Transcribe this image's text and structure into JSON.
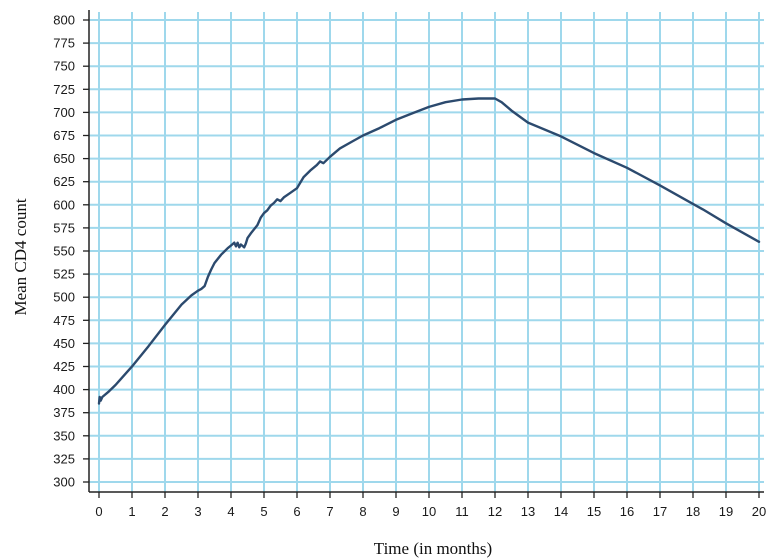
{
  "chart_data": {
    "type": "line",
    "title": "",
    "xlabel": "Time (in months)",
    "ylabel": "Mean CD4 count",
    "xlim": [
      0,
      20
    ],
    "ylim": [
      300,
      800
    ],
    "x_ticks": [
      0,
      1,
      2,
      3,
      4,
      5,
      6,
      7,
      8,
      9,
      10,
      11,
      12,
      13,
      14,
      15,
      16,
      17,
      18,
      19,
      20
    ],
    "y_ticks": [
      300,
      325,
      350,
      375,
      400,
      425,
      450,
      475,
      500,
      525,
      550,
      575,
      600,
      625,
      650,
      675,
      700,
      725,
      750,
      775,
      800
    ],
    "grid": true,
    "legend": "none",
    "colors": {
      "line": "#2c4a6e",
      "grid": "#9fd8ec",
      "axis": "#222222"
    },
    "series": [
      {
        "x": [
          0,
          0.02,
          0.05,
          0.1,
          0.3,
          0.5,
          1,
          1.5,
          2,
          2.5,
          2.8,
          3.0,
          3.1,
          3.2,
          3.3,
          3.4,
          3.5,
          3.7,
          3.9,
          4.0,
          4.1,
          4.15,
          4.2,
          4.25,
          4.3,
          4.4,
          4.45,
          4.5,
          4.6,
          4.8,
          4.9,
          5.0,
          5.1,
          5.2,
          5.3,
          5.4,
          5.5,
          5.6,
          5.8,
          6.0,
          6.1,
          6.2,
          6.4,
          6.6,
          6.7,
          6.8,
          7.0,
          7.3,
          7.7,
          8.0,
          8.5,
          9.0,
          9.5,
          10.0,
          10.5,
          11.0,
          11.5,
          11.8,
          12.0,
          12.2,
          12.5,
          13.0,
          14.0,
          15.0,
          16.0,
          17.0,
          18.0,
          18.3,
          19.0,
          20.0
        ],
        "values": [
          385,
          392,
          388,
          392,
          398,
          405,
          425,
          447,
          470,
          492,
          502,
          507,
          509,
          512,
          522,
          530,
          537,
          546,
          553,
          556,
          559,
          555,
          559,
          554,
          557,
          554,
          558,
          564,
          569,
          578,
          586,
          591,
          594,
          599,
          602,
          606,
          604,
          608,
          613,
          618,
          624,
          630,
          637,
          643,
          647,
          645,
          652,
          661,
          669,
          675,
          683,
          692,
          699,
          706,
          711,
          714,
          715,
          715,
          715,
          711,
          702,
          689,
          674,
          656,
          640,
          621,
          601,
          595,
          580,
          560
        ]
      }
    ]
  }
}
